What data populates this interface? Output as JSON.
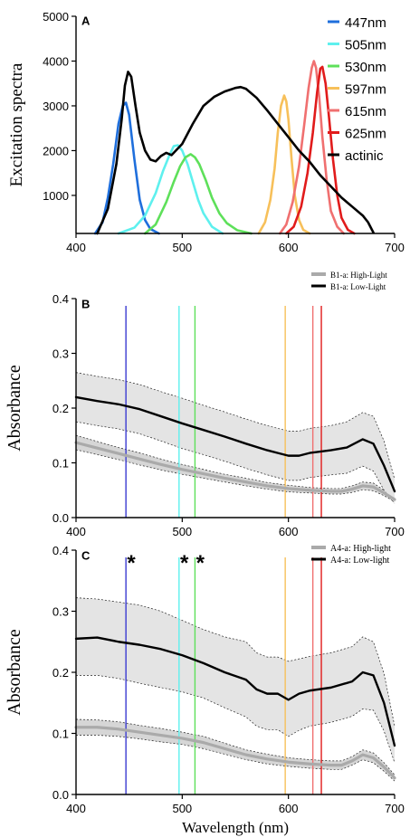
{
  "figure": {
    "background": "#ffffff"
  },
  "chart_data": [
    {
      "type": "line",
      "panel_label": "A",
      "title": "",
      "xlabel": "",
      "ylabel": "Excitation spectra",
      "xlim": [
        400,
        700
      ],
      "ylim": [
        150,
        5000
      ],
      "xticks": [
        400,
        500,
        600,
        700
      ],
      "yticks": [
        1000,
        2000,
        3000,
        4000,
        5000
      ],
      "grid": false,
      "legend_position": "top-right",
      "series": [
        {
          "name": "447nm",
          "color": "#1f6fdc",
          "x": [
            418,
            425,
            430,
            435,
            440,
            444,
            447,
            450,
            455,
            460,
            465,
            470,
            478
          ],
          "y": [
            150,
            400,
            950,
            1700,
            2600,
            3000,
            3070,
            2800,
            1800,
            900,
            450,
            250,
            150
          ]
        },
        {
          "name": "505nm",
          "color": "#5ef0ee",
          "x": [
            440,
            455,
            465,
            475,
            482,
            488,
            492,
            496,
            500,
            505,
            510,
            515,
            520,
            528,
            538
          ],
          "y": [
            150,
            280,
            550,
            1050,
            1550,
            1900,
            2100,
            2120,
            2000,
            1700,
            1300,
            900,
            600,
            300,
            150
          ]
        },
        {
          "name": "530nm",
          "color": "#5ee05a",
          "x": [
            465,
            475,
            485,
            492,
            498,
            503,
            508,
            512,
            516,
            522,
            528,
            535,
            542,
            552,
            565
          ],
          "y": [
            150,
            350,
            850,
            1300,
            1650,
            1850,
            1920,
            1850,
            1700,
            1350,
            950,
            600,
            380,
            220,
            150
          ]
        },
        {
          "name": "597nm",
          "color": "#f7c05a",
          "x": [
            572,
            578,
            583,
            587,
            590,
            593,
            596,
            598,
            600,
            603,
            606,
            610,
            614,
            620
          ],
          "y": [
            150,
            400,
            900,
            1600,
            2400,
            3000,
            3230,
            3100,
            2700,
            1800,
            1000,
            450,
            230,
            150
          ]
        },
        {
          "name": "615nm",
          "color": "#f07070",
          "x": [
            592,
            598,
            604,
            610,
            615,
            619,
            622,
            624,
            626,
            629,
            632,
            636,
            640,
            646,
            652
          ],
          "y": [
            150,
            350,
            850,
            1650,
            2600,
            3400,
            3850,
            4000,
            3850,
            3200,
            2300,
            1350,
            650,
            300,
            150
          ]
        },
        {
          "name": "625nm",
          "color": "#e11b1b",
          "x": [
            598,
            605,
            612,
            618,
            623,
            627,
            630,
            632,
            635,
            638,
            642,
            646,
            650,
            656,
            662
          ],
          "y": [
            150,
            300,
            750,
            1500,
            2400,
            3300,
            3830,
            3870,
            3500,
            2800,
            1800,
            1000,
            500,
            230,
            150
          ]
        },
        {
          "name": "actinic",
          "color": "#000000",
          "x": [
            420,
            430,
            438,
            443,
            446,
            449,
            452,
            456,
            460,
            465,
            470,
            475,
            480,
            485,
            490,
            500,
            510,
            520,
            530,
            540,
            550,
            555,
            560,
            570,
            580,
            590,
            600,
            610,
            620,
            630,
            640,
            650,
            660,
            670,
            675,
            680
          ],
          "y": [
            150,
            700,
            1700,
            2700,
            3450,
            3760,
            3650,
            3000,
            2400,
            2000,
            1800,
            1760,
            1880,
            1950,
            1900,
            2150,
            2600,
            3000,
            3200,
            3320,
            3400,
            3420,
            3380,
            3180,
            2900,
            2600,
            2300,
            2000,
            1750,
            1450,
            1200,
            950,
            750,
            550,
            400,
            170
          ]
        }
      ]
    },
    {
      "type": "line",
      "panel_label": "B",
      "title": "",
      "xlabel": "",
      "ylabel": "Absorbance",
      "xlim": [
        400,
        700
      ],
      "ylim": [
        0,
        0.4
      ],
      "xticks": [
        400,
        500,
        600,
        700
      ],
      "yticks": [
        0.0,
        0.1,
        0.2,
        0.3,
        0.4
      ],
      "ytick_labels": [
        "0.0",
        "0.1",
        "0.2",
        "0.3",
        "0.4"
      ],
      "grid": false,
      "legend_position": "top-right",
      "vlines": [
        {
          "x": 447,
          "color": "#3b3bd1"
        },
        {
          "x": 497,
          "color": "#5ef0ee"
        },
        {
          "x": 512,
          "color": "#5ee05a"
        },
        {
          "x": 597,
          "color": "#f7c05a"
        },
        {
          "x": 623,
          "color": "#f07070"
        },
        {
          "x": 631,
          "color": "#e11b1b"
        }
      ],
      "series": [
        {
          "name": "B1-a: High-Light",
          "color": "#aaaaaa",
          "x": [
            400,
            420,
            440,
            460,
            480,
            500,
            520,
            540,
            560,
            580,
            600,
            620,
            640,
            650,
            660,
            670,
            680,
            690,
            700
          ],
          "y": [
            0.137,
            0.127,
            0.117,
            0.107,
            0.097,
            0.088,
            0.08,
            0.072,
            0.065,
            0.058,
            0.053,
            0.05,
            0.048,
            0.048,
            0.052,
            0.058,
            0.056,
            0.045,
            0.033
          ],
          "band_upper": [
            0.15,
            0.139,
            0.128,
            0.118,
            0.107,
            0.097,
            0.088,
            0.079,
            0.072,
            0.064,
            0.059,
            0.055,
            0.053,
            0.053,
            0.058,
            0.065,
            0.063,
            0.05,
            0.037
          ],
          "band_lower": [
            0.124,
            0.115,
            0.106,
            0.096,
            0.087,
            0.079,
            0.072,
            0.065,
            0.058,
            0.052,
            0.047,
            0.045,
            0.043,
            0.043,
            0.046,
            0.051,
            0.049,
            0.04,
            0.029
          ]
        },
        {
          "name": "B1-a: Low-Light",
          "color": "#000000",
          "x": [
            400,
            420,
            440,
            460,
            480,
            500,
            520,
            540,
            560,
            580,
            590,
            600,
            610,
            620,
            640,
            655,
            670,
            680,
            690,
            700
          ],
          "y": [
            0.22,
            0.213,
            0.207,
            0.198,
            0.185,
            0.172,
            0.16,
            0.148,
            0.135,
            0.123,
            0.118,
            0.113,
            0.113,
            0.118,
            0.123,
            0.128,
            0.143,
            0.135,
            0.095,
            0.048
          ],
          "band_upper": [
            0.265,
            0.258,
            0.252,
            0.243,
            0.23,
            0.218,
            0.205,
            0.193,
            0.18,
            0.168,
            0.163,
            0.158,
            0.158,
            0.163,
            0.168,
            0.175,
            0.192,
            0.185,
            0.14,
            0.07
          ],
          "band_lower": [
            0.175,
            0.168,
            0.162,
            0.153,
            0.14,
            0.126,
            0.115,
            0.103,
            0.09,
            0.078,
            0.073,
            0.068,
            0.068,
            0.073,
            0.078,
            0.081,
            0.094,
            0.085,
            0.05,
            0.026
          ]
        }
      ]
    },
    {
      "type": "line",
      "panel_label": "C",
      "title": "",
      "xlabel": "Wavelength (nm)",
      "ylabel": "Absorbance",
      "xlim": [
        400,
        700
      ],
      "ylim": [
        0,
        0.4
      ],
      "xticks": [
        400,
        500,
        600,
        700
      ],
      "yticks": [
        0.0,
        0.1,
        0.2,
        0.3,
        0.4
      ],
      "ytick_labels": [
        "0.0",
        "0.1",
        "0.2",
        "0.3",
        "0.4"
      ],
      "grid": false,
      "legend_position": "top-right",
      "vlines": [
        {
          "x": 447,
          "color": "#3b3bd1"
        },
        {
          "x": 497,
          "color": "#5ef0ee"
        },
        {
          "x": 512,
          "color": "#5ee05a"
        },
        {
          "x": 597,
          "color": "#f7c05a"
        },
        {
          "x": 623,
          "color": "#f07070"
        },
        {
          "x": 631,
          "color": "#e11b1b"
        }
      ],
      "annotations": [
        {
          "text": "*",
          "x": 452,
          "y": 0.4
        },
        {
          "text": "*",
          "x": 502,
          "y": 0.4
        },
        {
          "text": "*",
          "x": 517,
          "y": 0.4
        }
      ],
      "series": [
        {
          "name": "A4-a: High-light",
          "color": "#aaaaaa",
          "x": [
            400,
            420,
            440,
            460,
            480,
            500,
            520,
            540,
            560,
            580,
            600,
            620,
            640,
            650,
            660,
            670,
            680,
            690,
            700
          ],
          "y": [
            0.11,
            0.11,
            0.107,
            0.102,
            0.097,
            0.092,
            0.085,
            0.075,
            0.065,
            0.058,
            0.053,
            0.05,
            0.048,
            0.048,
            0.055,
            0.065,
            0.06,
            0.045,
            0.027
          ],
          "band_upper": [
            0.123,
            0.122,
            0.119,
            0.113,
            0.108,
            0.102,
            0.095,
            0.084,
            0.073,
            0.066,
            0.06,
            0.057,
            0.055,
            0.055,
            0.062,
            0.073,
            0.068,
            0.052,
            0.032
          ],
          "band_lower": [
            0.097,
            0.097,
            0.095,
            0.091,
            0.086,
            0.082,
            0.075,
            0.066,
            0.057,
            0.05,
            0.046,
            0.043,
            0.041,
            0.041,
            0.048,
            0.057,
            0.052,
            0.038,
            0.022
          ]
        },
        {
          "name": "A4-a: Low-light",
          "color": "#000000",
          "x": [
            400,
            420,
            440,
            460,
            480,
            500,
            520,
            540,
            560,
            570,
            580,
            590,
            600,
            610,
            620,
            640,
            660,
            670,
            680,
            690,
            700
          ],
          "y": [
            0.255,
            0.257,
            0.25,
            0.245,
            0.238,
            0.228,
            0.215,
            0.2,
            0.188,
            0.172,
            0.165,
            0.165,
            0.155,
            0.165,
            0.17,
            0.175,
            0.185,
            0.2,
            0.195,
            0.15,
            0.08
          ],
          "band_upper": [
            0.322,
            0.32,
            0.315,
            0.31,
            0.3,
            0.285,
            0.27,
            0.258,
            0.25,
            0.232,
            0.225,
            0.225,
            0.218,
            0.222,
            0.226,
            0.232,
            0.242,
            0.258,
            0.25,
            0.198,
            0.112
          ],
          "band_lower": [
            0.195,
            0.195,
            0.19,
            0.182,
            0.175,
            0.168,
            0.158,
            0.142,
            0.127,
            0.112,
            0.106,
            0.106,
            0.095,
            0.105,
            0.112,
            0.118,
            0.128,
            0.14,
            0.138,
            0.104,
            0.052
          ]
        }
      ]
    }
  ]
}
